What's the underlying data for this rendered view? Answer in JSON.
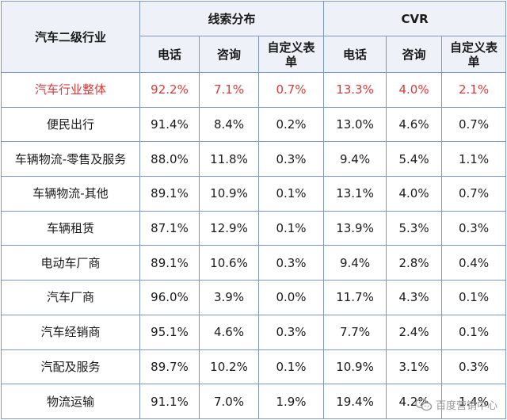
{
  "header": {
    "row_label": "汽车二级行业",
    "groups": [
      "线索分布",
      "CVR"
    ],
    "subcols": [
      "电话",
      "咨询",
      "自定义表\n单",
      "电话",
      "咨询",
      "自定义表\n单"
    ]
  },
  "rows": [
    {
      "label": "汽车行业整体",
      "values": [
        "92.2%",
        "7.1%",
        "0.7%",
        "13.3%",
        "4.0%",
        "2.1%"
      ],
      "highlight": true
    },
    {
      "label": "便民出行",
      "values": [
        "91.4%",
        "8.4%",
        "0.2%",
        "13.0%",
        "4.6%",
        "0.7%"
      ]
    },
    {
      "label": "车辆物流-零售及服务",
      "values": [
        "88.0%",
        "11.8%",
        "0.3%",
        "9.4%",
        "5.4%",
        "1.1%"
      ]
    },
    {
      "label": "车辆物流-其他",
      "values": [
        "89.1%",
        "10.9%",
        "0.1%",
        "13.1%",
        "4.0%",
        "0.7%"
      ]
    },
    {
      "label": "车辆租赁",
      "values": [
        "87.1%",
        "12.9%",
        "0.1%",
        "13.9%",
        "5.3%",
        "0.3%"
      ]
    },
    {
      "label": "电动车厂商",
      "values": [
        "89.1%",
        "10.6%",
        "0.3%",
        "9.4%",
        "2.8%",
        "0.4%"
      ]
    },
    {
      "label": "汽车厂商",
      "values": [
        "96.0%",
        "3.9%",
        "0.0%",
        "11.7%",
        "4.3%",
        "0.1%"
      ]
    },
    {
      "label": "汽车经销商",
      "values": [
        "95.1%",
        "4.6%",
        "0.3%",
        "7.7%",
        "2.4%",
        "0.1%"
      ]
    },
    {
      "label": "汽配及服务",
      "values": [
        "89.7%",
        "10.2%",
        "0.1%",
        "10.9%",
        "3.1%",
        "0.3%"
      ]
    },
    {
      "label": "物流运输",
      "values": [
        "91.1%",
        "7.0%",
        "1.9%",
        "19.4%",
        "4.2%",
        "1.4%"
      ]
    }
  ],
  "watermark": {
    "text": "百度营销中心",
    "icon": "wechat-icon"
  },
  "colors": {
    "border": "#7f97c2",
    "highlight_text": "#d93a3a",
    "header_bg": "#eef2f8"
  }
}
